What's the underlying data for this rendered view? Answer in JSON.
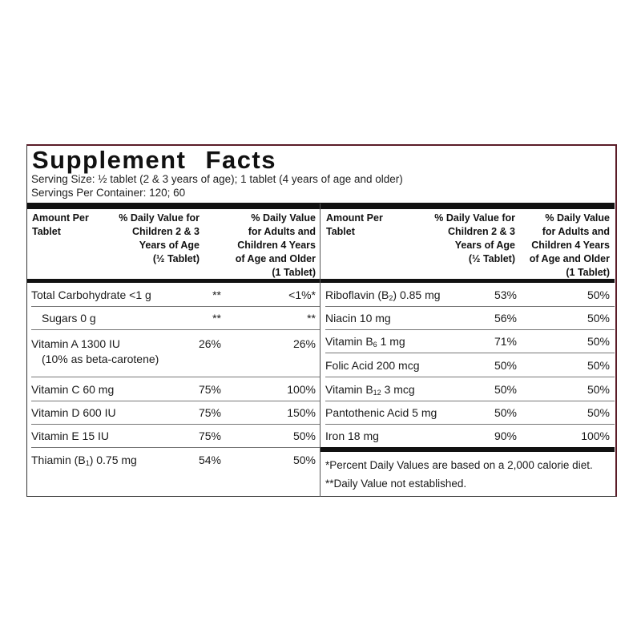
{
  "title": "Supplement Facts",
  "serving_size": "Serving Size: ½ tablet (2 & 3 years of age); 1 tablet (4 years of age and older)",
  "servings_per_container": "Servings Per Container: 120; 60",
  "headers": {
    "amount": [
      "Amount Per",
      "Tablet"
    ],
    "children": [
      "% Daily Value for",
      "Children 2 & 3",
      "Years of Age",
      "(½ Tablet)"
    ],
    "adults": [
      "% Daily Value",
      "for Adults and",
      "Children 4 Years",
      "of Age and Older",
      "(1 Tablet)"
    ]
  },
  "left_rows": [
    {
      "name": "Total Carbohydrate <1 g",
      "child": "**",
      "adult": "<1%*"
    },
    {
      "name": "Sugars 0 g",
      "child": "**",
      "adult": "**"
    },
    {
      "name": "Vitamin A 1300 IU",
      "name2": "(10% as beta-carotene)",
      "child": "26%",
      "adult": "26%"
    },
    {
      "name": "Vitamin C 60 mg",
      "child": "75%",
      "adult": "100%"
    },
    {
      "name": "Vitamin D 600 IU",
      "child": "75%",
      "adult": "150%"
    },
    {
      "name": "Vitamin E 15 IU",
      "child": "75%",
      "adult": "50%"
    },
    {
      "name_pre": "Thiamin (B",
      "name_sub": "1",
      "name_post": ") 0.75 mg",
      "child": "54%",
      "adult": "50%"
    }
  ],
  "right_rows": [
    {
      "name_pre": "Riboflavin (B",
      "name_sub": "2",
      "name_post": ") 0.85 mg",
      "child": "53%",
      "adult": "50%"
    },
    {
      "name": "Niacin 10 mg",
      "child": "56%",
      "adult": "50%"
    },
    {
      "name_pre": "Vitamin B",
      "name_sub": "6",
      "name_post": " 1 mg",
      "child": "71%",
      "adult": "50%"
    },
    {
      "name": "Folic Acid 200 mcg",
      "child": "50%",
      "adult": "50%"
    },
    {
      "name_pre": "Vitamin B",
      "name_sub": "12",
      "name_post": " 3 mcg",
      "child": "50%",
      "adult": "50%"
    },
    {
      "name": "Pantothenic Acid 5 mg",
      "child": "50%",
      "adult": "50%"
    },
    {
      "name": "Iron 18 mg",
      "child": "90%",
      "adult": "100%"
    }
  ],
  "footnotes": [
    "*Percent Daily Values are based on a 2,000 calorie diet.",
    "**Daily Value not established."
  ]
}
